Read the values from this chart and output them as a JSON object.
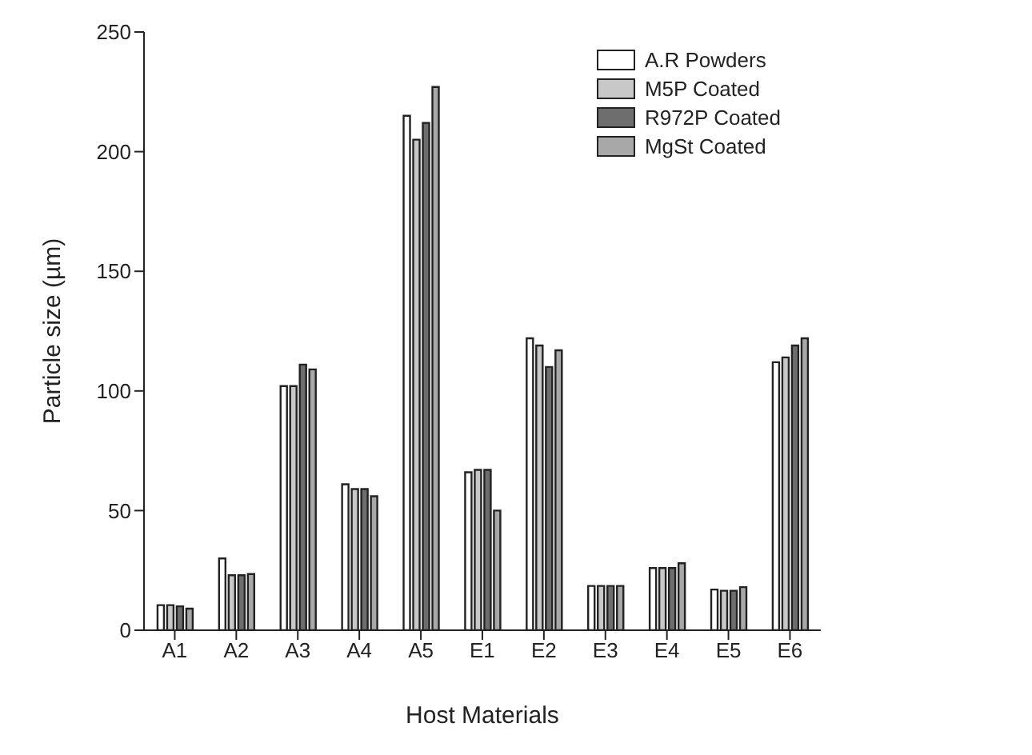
{
  "chart_data": {
    "type": "bar",
    "xlabel": "Host Materials",
    "ylabel": "Particle size (µm)",
    "categories": [
      "A1",
      "A2",
      "A3",
      "A4",
      "A5",
      "E1",
      "E2",
      "E3",
      "E4",
      "E5",
      "E6"
    ],
    "series": [
      {
        "name": "A.R Powders",
        "color": "#ffffff",
        "values": [
          10.5,
          30,
          102,
          61,
          215,
          66,
          122,
          18.5,
          26,
          17,
          112
        ]
      },
      {
        "name": "M5P Coated",
        "color": "#c8c8c8",
        "values": [
          10.5,
          23,
          102,
          59,
          205,
          67,
          119,
          18.5,
          26,
          16.5,
          114
        ]
      },
      {
        "name": "R972P Coated",
        "color": "#6e6e6e",
        "values": [
          10,
          23,
          111,
          59,
          212,
          67,
          110,
          18.5,
          26,
          16.5,
          119
        ]
      },
      {
        "name": "MgSt Coated",
        "color": "#a8a8a8",
        "values": [
          9,
          23.5,
          109,
          56,
          227,
          50,
          117,
          18.5,
          28,
          18,
          122
        ]
      }
    ],
    "ylim": [
      0,
      250
    ],
    "yticks": [
      0,
      50,
      100,
      150,
      200,
      250
    ],
    "grid": false,
    "legend": "top right"
  }
}
